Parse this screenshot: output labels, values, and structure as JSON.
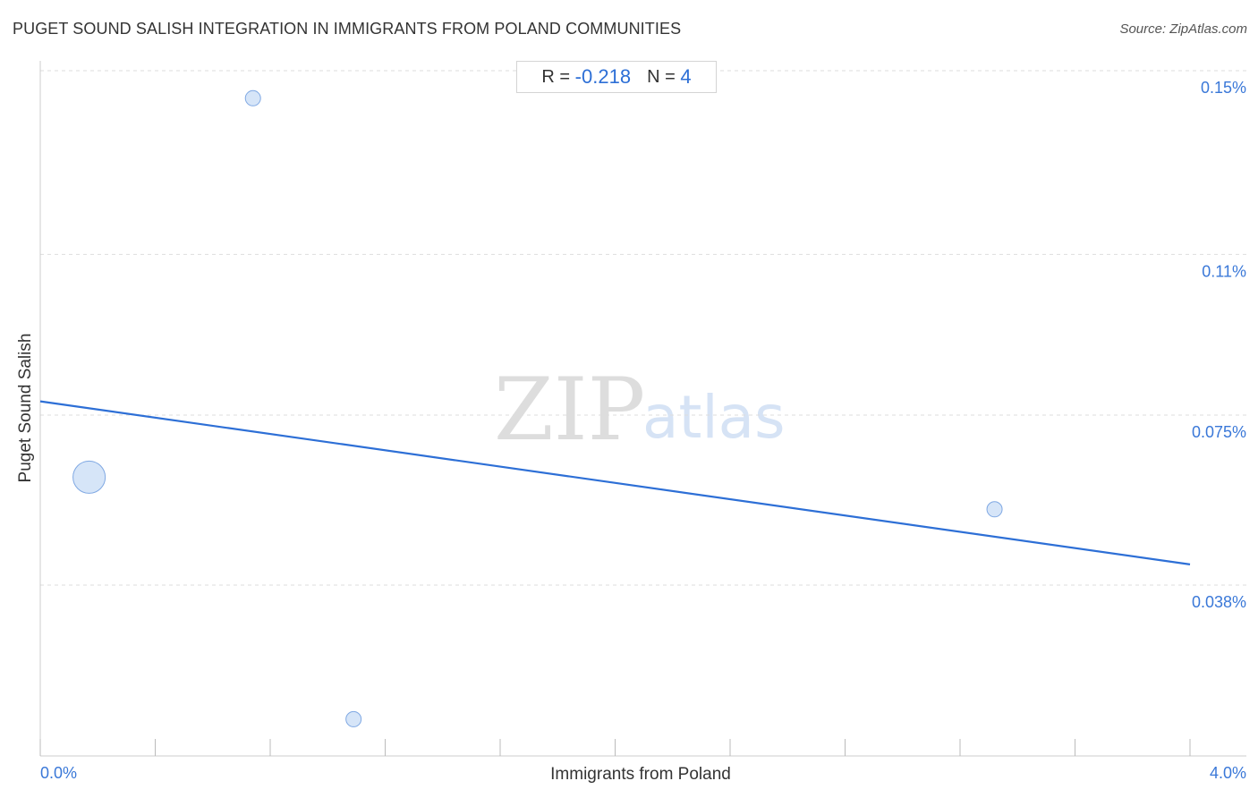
{
  "header": {
    "title": "PUGET SOUND SALISH INTEGRATION IN IMMIGRANTS FROM POLAND COMMUNITIES",
    "source": "Source: ZipAtlas.com"
  },
  "stats": {
    "r_label": "R =",
    "r_value": "-0.218",
    "n_label": "N =",
    "n_value": "4"
  },
  "watermark": {
    "zip": "ZIP",
    "atlas": "atlas"
  },
  "colors": {
    "accent": "#2d6fd6",
    "point_fill": "#cfe0f7",
    "point_stroke": "#7fa8e3",
    "grid": "#dddddd"
  },
  "chart_data": {
    "type": "scatter",
    "xlabel": "Immigrants from Poland",
    "ylabel": "Puget Sound Salish",
    "xlim": [
      0.0,
      4.0
    ],
    "ylim": [
      0.0,
      0.15
    ],
    "x_tick_labels": [
      {
        "value": 0.0,
        "label": "0.0%"
      },
      {
        "value": 4.0,
        "label": "4.0%"
      }
    ],
    "y_tick_labels": [
      {
        "value": 0.15,
        "label": "0.15%"
      },
      {
        "value": 0.11,
        "label": "0.11%"
      },
      {
        "value": 0.075,
        "label": "0.075%"
      },
      {
        "value": 0.038,
        "label": "0.038%"
      }
    ],
    "points": [
      {
        "x": 0.17,
        "y": 0.0615,
        "weight": 4.5
      },
      {
        "x": 0.74,
        "y": 0.144,
        "weight": 1
      },
      {
        "x": 1.09,
        "y": 0.0088,
        "weight": 1
      },
      {
        "x": 3.32,
        "y": 0.0545,
        "weight": 1
      }
    ],
    "trendline": {
      "x": [
        0.0,
        4.0
      ],
      "y": [
        0.078,
        0.0425
      ]
    },
    "grid": true
  }
}
